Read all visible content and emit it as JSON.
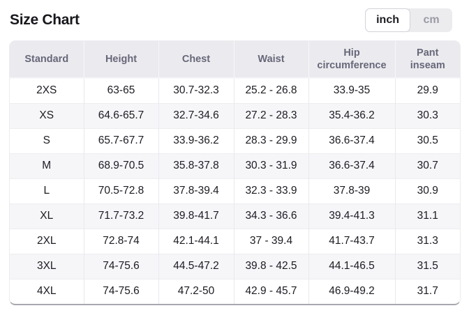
{
  "header": {
    "title": "Size Chart",
    "unit_toggle": {
      "options": [
        {
          "label": "inch",
          "selected": true
        },
        {
          "label": "cm",
          "selected": false
        }
      ]
    }
  },
  "table": {
    "columns": [
      "Standard",
      "Height",
      "Chest",
      "Waist",
      "Hip circumference",
      "Pant inseam"
    ],
    "rows": [
      [
        "2XS",
        "63-65",
        "30.7-32.3",
        "25.2 - 26.8",
        "33.9-35",
        "29.9"
      ],
      [
        "XS",
        "64.6-65.7",
        "32.7-34.6",
        "27.2 - 28.3",
        "35.4-36.2",
        "30.3"
      ],
      [
        "S",
        "65.7-67.7",
        "33.9-36.2",
        "28.3 - 29.9",
        "36.6-37.4",
        "30.5"
      ],
      [
        "M",
        "68.9-70.5",
        "35.8-37.8",
        "30.3 - 31.9",
        "36.6-37.4",
        "30.7"
      ],
      [
        "L",
        "70.5-72.8",
        "37.8-39.4",
        "32.3 - 33.9",
        "37.8-39",
        "30.9"
      ],
      [
        "XL",
        "71.7-73.2",
        "39.8-41.7",
        "34.3 - 36.6",
        "39.4-41.3",
        "31.1"
      ],
      [
        "2XL",
        "72.8-74",
        "42.1-44.1",
        "37 - 39.4",
        "41.7-43.7",
        "31.3"
      ],
      [
        "3XL",
        "74-75.6",
        "44.5-47.2",
        "39.8 - 42.5",
        "44.1-46.5",
        "31.5"
      ],
      [
        "4XL",
        "74-75.6",
        "47.2-50",
        "42.9 - 45.7",
        "46.9-49.2",
        "31.7"
      ]
    ]
  },
  "colors": {
    "header_bg": "#ebebef",
    "header_text": "#67677a",
    "cell_text": "#1b1b22",
    "zebra_row_bg": "#f6f6f9",
    "table_bottom_border": "#a7a7b0",
    "toggle_inactive_bg": "#ececef",
    "toggle_inactive_text": "#9a9aa5",
    "toggle_active_border": "#d2d2d9"
  }
}
